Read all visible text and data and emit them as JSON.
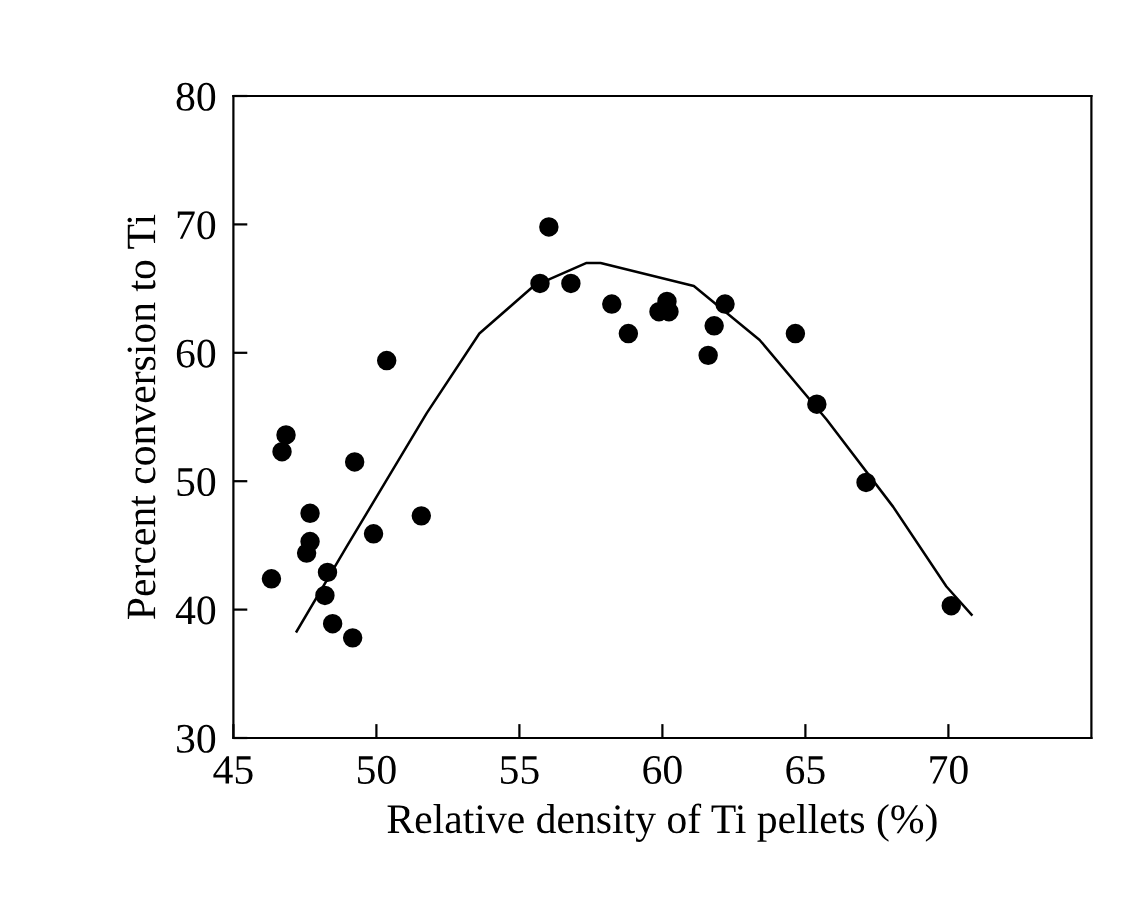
{
  "chart_data": {
    "type": "scatter",
    "xlabel": "Relative density of Ti pellets (%)",
    "ylabel": "Percent conversion to Ti",
    "xlim": [
      45,
      75
    ],
    "xticks": [
      45,
      50,
      55,
      60,
      65,
      70
    ],
    "ylim": [
      30,
      80
    ],
    "yticks": [
      30,
      40,
      50,
      60,
      70,
      80
    ],
    "grid": false,
    "legend": false,
    "marker": "circle",
    "series": [
      {
        "color": "#000000",
        "x": [
          46.33,
          46.7,
          46.84,
          47.68,
          47.68,
          47.56,
          48.29,
          48.2,
          48.47,
          49.17,
          49.24,
          49.9,
          50.36,
          51.57,
          55.72,
          56.03,
          56.8,
          58.23,
          58.81,
          59.88,
          60.16,
          60.23,
          61.6,
          61.81,
          62.19,
          64.65,
          65.4,
          67.12,
          70.1
        ],
        "values": [
          42.4,
          52.3,
          53.6,
          47.5,
          45.3,
          44.4,
          42.9,
          41.1,
          38.9,
          37.8,
          51.5,
          45.9,
          59.4,
          47.3,
          65.4,
          69.8,
          65.4,
          63.8,
          61.5,
          63.2,
          64.0,
          63.2,
          59.8,
          62.1,
          63.8,
          61.5,
          56.0,
          49.9,
          40.3
        ]
      },
      {
        "type": "line",
        "color": "#000000",
        "marker": "none",
        "x": [
          47.21,
          48.96,
          50.36,
          51.76,
          53.6,
          55.5,
          57.35,
          57.84,
          61.1,
          63.4,
          65.74,
          68.07,
          69.93,
          70.81
        ],
        "values": [
          38.3,
          44.9,
          50.1,
          55.3,
          61.5,
          65.2,
          67.0,
          67.0,
          65.2,
          61.0,
          54.8,
          48.0,
          41.8,
          39.6
        ]
      }
    ]
  }
}
